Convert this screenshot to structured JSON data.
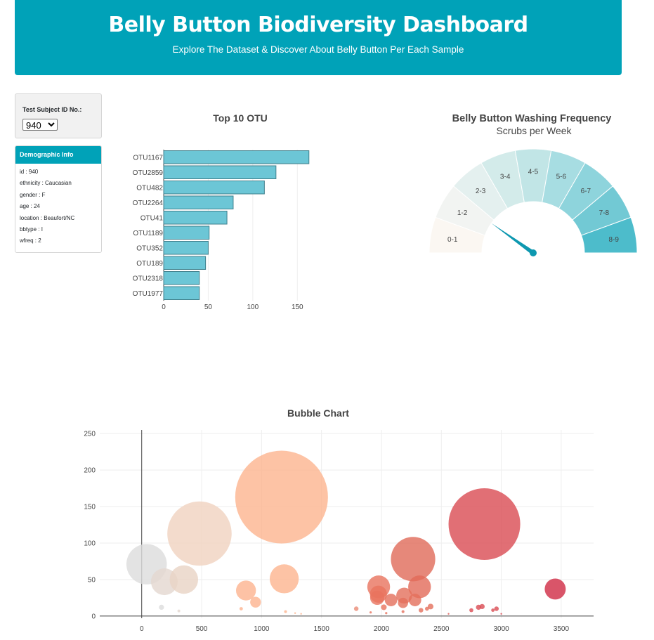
{
  "header": {
    "title": "Belly Button Biodiversity Dashboard",
    "subtitle": "Explore The Dataset & Discover About Belly Button Per Each Sample"
  },
  "selector": {
    "label": "Test Subject ID No.:",
    "selected": "940"
  },
  "demographics": {
    "title": "Demographic Info",
    "rows": [
      "id : 940",
      "ethnicity : Caucasian",
      "gender : F",
      "age : 24",
      "location : Beaufort/NC",
      "bbtype : I",
      "wfreq : 2"
    ]
  },
  "colors": {
    "accent": "#00a2b8",
    "bar_fill": "#6cc6d6",
    "bar_stroke": "#3f7f8c"
  },
  "bar_chart": {
    "title": "Top 10 OTU",
    "chart_data": {
      "type": "bar",
      "orientation": "horizontal",
      "categories": [
        "OTU1167",
        "OTU2859",
        "OTU482",
        "OTU2264",
        "OTU41",
        "OTU1189",
        "OTU352",
        "OTU189",
        "OTU2318",
        "OTU1977"
      ],
      "values": [
        163,
        126,
        113,
        78,
        71,
        51,
        50,
        47,
        40,
        40
      ],
      "xlim": [
        0,
        175
      ],
      "xticks": [
        0,
        50,
        100,
        150
      ]
    }
  },
  "gauge": {
    "title": "Belly Button Washing Frequency",
    "subtitle": "Scrubs per Week",
    "chart_data": {
      "type": "gauge",
      "value": 2,
      "range": [
        0,
        9
      ],
      "labels": [
        "0-1",
        "1-2",
        "2-3",
        "3-4",
        "4-5",
        "5-6",
        "6-7",
        "7-8",
        "8-9"
      ],
      "colors": [
        "#fbf7f2",
        "#f2f4f2",
        "#e4f0ef",
        "#d3ebea",
        "#c1e5e6",
        "#a7dde2",
        "#8ed4dc",
        "#72c9d4",
        "#4dbccb"
      ]
    }
  },
  "bubble_chart": {
    "title": "Bubble Chart",
    "chart_data": {
      "type": "scatter",
      "xlim": [
        -350,
        3770
      ],
      "ylim": [
        -3,
        255
      ],
      "xticks": [
        0,
        500,
        1000,
        1500,
        2000,
        2500,
        3000,
        3500
      ],
      "yticks": [
        0,
        50,
        100,
        150,
        200,
        250
      ],
      "points": [
        {
          "x": 41,
          "y": 71,
          "size": 71,
          "color": "#dcdcdc"
        },
        {
          "x": 189,
          "y": 47,
          "size": 47,
          "color": "#e4d7cf"
        },
        {
          "x": 352,
          "y": 50,
          "size": 50,
          "color": "#e8d3c4"
        },
        {
          "x": 482,
          "y": 113,
          "size": 113,
          "color": "#f0d2bf"
        },
        {
          "x": 1167,
          "y": 163,
          "size": 163,
          "color": "#fdb48e"
        },
        {
          "x": 1189,
          "y": 51,
          "size": 51,
          "color": "#fdb48e"
        },
        {
          "x": 870,
          "y": 35,
          "size": 35,
          "color": "#fcb38f"
        },
        {
          "x": 950,
          "y": 19,
          "size": 19,
          "color": "#fcb38f"
        },
        {
          "x": 1977,
          "y": 40,
          "size": 40,
          "color": "#e8735e"
        },
        {
          "x": 1975,
          "y": 30,
          "size": 30,
          "color": "#e8735e"
        },
        {
          "x": 1965,
          "y": 25,
          "size": 25,
          "color": "#e8735e"
        },
        {
          "x": 2264,
          "y": 78,
          "size": 78,
          "color": "#e06a59"
        },
        {
          "x": 2318,
          "y": 40,
          "size": 40,
          "color": "#e26a59"
        },
        {
          "x": 2080,
          "y": 22,
          "size": 22,
          "color": "#e46f5b"
        },
        {
          "x": 2190,
          "y": 28,
          "size": 28,
          "color": "#e46f5b"
        },
        {
          "x": 2280,
          "y": 22,
          "size": 22,
          "color": "#e46f5b"
        },
        {
          "x": 2180,
          "y": 18,
          "size": 18,
          "color": "#e46f5b"
        },
        {
          "x": 2859,
          "y": 126,
          "size": 126,
          "color": "#d94b53"
        },
        {
          "x": 3450,
          "y": 37,
          "size": 37,
          "color": "#cf2a44"
        },
        {
          "x": 1790,
          "y": 10,
          "size": 8,
          "color": "#ea8b76"
        },
        {
          "x": 2020,
          "y": 12,
          "size": 10,
          "color": "#e8735e"
        },
        {
          "x": 2330,
          "y": 8,
          "size": 8,
          "color": "#e46f5b"
        },
        {
          "x": 2410,
          "y": 13,
          "size": 10,
          "color": "#e46f5b"
        },
        {
          "x": 2380,
          "y": 10,
          "size": 7,
          "color": "#e46f5b"
        },
        {
          "x": 2750,
          "y": 8,
          "size": 7,
          "color": "#d94b53"
        },
        {
          "x": 2810,
          "y": 12,
          "size": 9,
          "color": "#d94b53"
        },
        {
          "x": 2840,
          "y": 13,
          "size": 9,
          "color": "#d94b53"
        },
        {
          "x": 2930,
          "y": 8,
          "size": 6,
          "color": "#d94b53"
        },
        {
          "x": 2960,
          "y": 10,
          "size": 8,
          "color": "#d94b53"
        },
        {
          "x": 165,
          "y": 12,
          "size": 9,
          "color": "#dcdcdc"
        },
        {
          "x": 310,
          "y": 7,
          "size": 5,
          "color": "#e4d7cf"
        },
        {
          "x": 830,
          "y": 10,
          "size": 6,
          "color": "#fcb38f"
        },
        {
          "x": 1200,
          "y": 6,
          "size": 5,
          "color": "#fdb48e"
        },
        {
          "x": 1280,
          "y": 4,
          "size": 3,
          "color": "#fdb48e"
        },
        {
          "x": 1330,
          "y": 3,
          "size": 3,
          "color": "#fdb48e"
        },
        {
          "x": 1910,
          "y": 5,
          "size": 4,
          "color": "#e8735e"
        },
        {
          "x": 2040,
          "y": 4,
          "size": 4,
          "color": "#e8735e"
        },
        {
          "x": 2180,
          "y": 6,
          "size": 5,
          "color": "#e46f5b"
        },
        {
          "x": 2560,
          "y": 3,
          "size": 3,
          "color": "#de5a55"
        },
        {
          "x": 3000,
          "y": 3,
          "size": 3,
          "color": "#d94b53"
        }
      ]
    }
  }
}
